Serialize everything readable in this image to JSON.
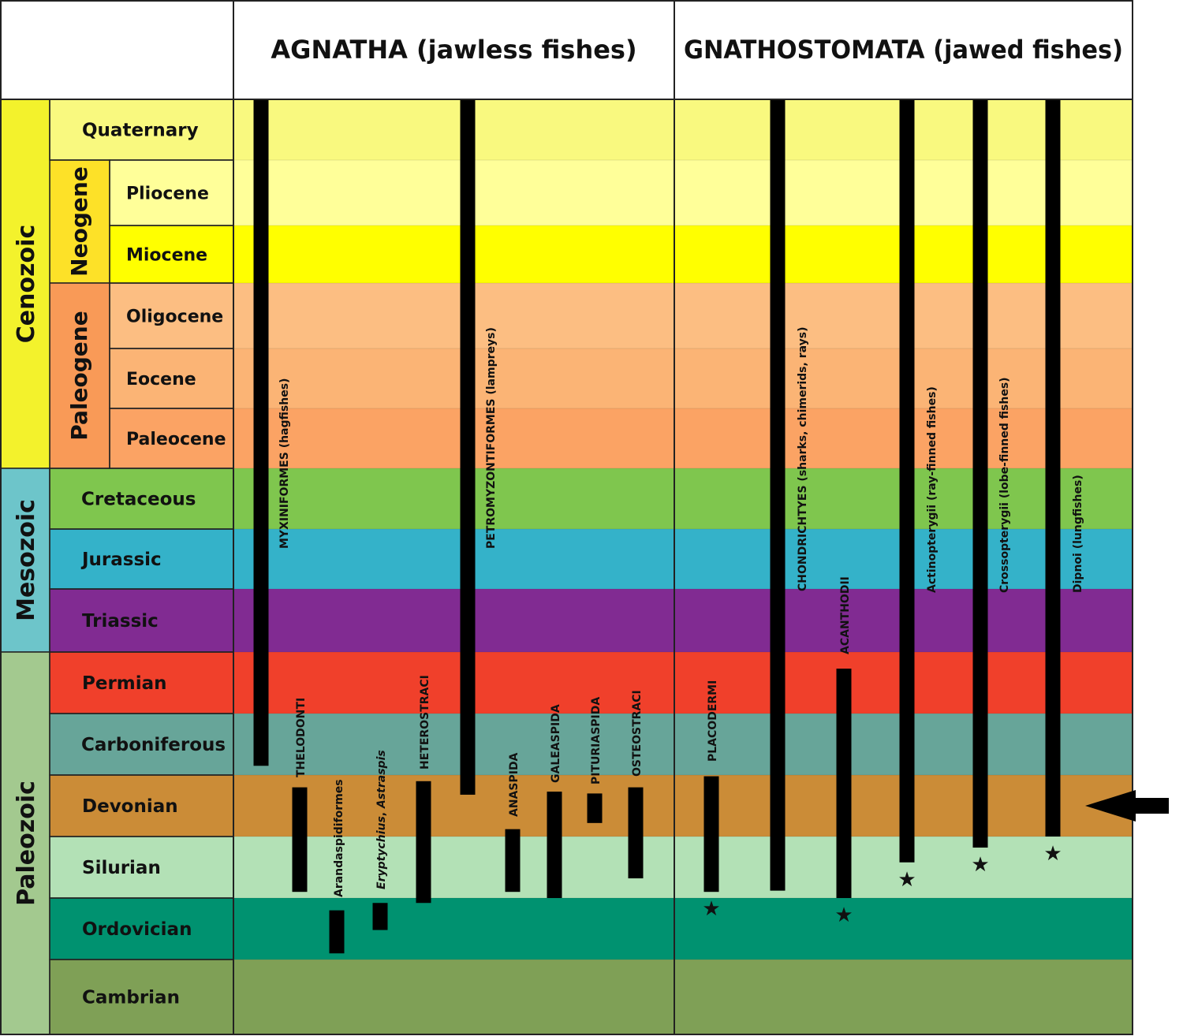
{
  "headers": {
    "agnatha": "AGNATHA (jawless fishes)",
    "gnathostomata": "GNATHOSTOMATA (jawed fishes)"
  },
  "eras": [
    {
      "id": "cenozoic",
      "name": "Cenozoic",
      "color": "#f3f22c",
      "from": "quaternary",
      "to": "paleocene"
    },
    {
      "id": "mesozoic",
      "name": "Mesozoic",
      "color": "#6dc5ca",
      "from": "cretaceous",
      "to": "triassic"
    },
    {
      "id": "paleozoic",
      "name": "Paleozoic",
      "color": "#a3c98f",
      "from": "permian",
      "to": "cambrian"
    }
  ],
  "periods": [
    {
      "id": "neogene",
      "name": "Neogene",
      "color": "#fde128",
      "from": "pliocene",
      "to": "miocene"
    },
    {
      "id": "paleogene",
      "name": "Paleogene",
      "color": "#f99a57",
      "from": "oligocene",
      "to": "paleocene"
    }
  ],
  "rows": [
    {
      "id": "quaternary",
      "name": "Quaternary",
      "color": "#f9f97f",
      "level": "period"
    },
    {
      "id": "pliocene",
      "name": "Pliocene",
      "color": "#ffff99",
      "level": "epoch"
    },
    {
      "id": "miocene",
      "name": "Miocene",
      "color": "#ffff00",
      "level": "epoch"
    },
    {
      "id": "oligocene",
      "name": "Oligocene",
      "color": "#fcbe82",
      "level": "epoch"
    },
    {
      "id": "eocene",
      "name": "Eocene",
      "color": "#fbb475",
      "level": "epoch"
    },
    {
      "id": "paleocene",
      "name": "Paleocene",
      "color": "#fba364",
      "level": "epoch"
    },
    {
      "id": "cretaceous",
      "name": "Cretaceous",
      "color": "#7fc64e",
      "level": "period"
    },
    {
      "id": "jurassic",
      "name": "Jurassic",
      "color": "#34b2c9",
      "level": "period"
    },
    {
      "id": "triassic",
      "name": "Triassic",
      "color": "#812b92",
      "level": "period"
    },
    {
      "id": "permian",
      "name": "Permian",
      "color": "#f0402b",
      "level": "period"
    },
    {
      "id": "carboniferous",
      "name": "Carboniferous",
      "color": "#67a599",
      "level": "period"
    },
    {
      "id": "devonian",
      "name": "Devonian",
      "color": "#cb8c37",
      "level": "period"
    },
    {
      "id": "silurian",
      "name": "Silurian",
      "color": "#b3e1b6",
      "level": "period"
    },
    {
      "id": "ordovician",
      "name": "Ordovician",
      "color": "#009270",
      "level": "period"
    },
    {
      "id": "cambrian",
      "name": "Cambrian",
      "color": "#7fa056",
      "level": "period"
    }
  ],
  "groups": [
    {
      "id": "myxiniformes",
      "label": "MYXINIFORMES (hagfishes)",
      "top": "quaternary",
      "bottom": "carboniferous",
      "bottom_frac": 0.85
    },
    {
      "id": "thelodonti",
      "label": "THELODONTI",
      "top": "devonian",
      "top_frac": 0.2,
      "bottom": "silurian",
      "bottom_frac": 0.9
    },
    {
      "id": "arandaspidiformes",
      "label": "Arandaspidiformes",
      "top": "ordovician",
      "top_frac": 0.2,
      "bottom": "ordovician",
      "bottom_frac": 0.9
    },
    {
      "id": "eryptychius",
      "label": "Eryptychius, Astraspis",
      "top": "ordovician",
      "top_frac": 0.08,
      "bottom": "ordovician",
      "bottom_frac": 0.52
    },
    {
      "id": "heterostraci",
      "label": "HETEROSTRACI",
      "top": "devonian",
      "top_frac": 0.1,
      "bottom": "ordovician",
      "bottom_frac": 0.08
    },
    {
      "id": "petromyzontiformes",
      "label": "PETROMYZONTIFORMES (lampreys)",
      "top": "quaternary",
      "bottom": "devonian",
      "bottom_frac": 0.32
    },
    {
      "id": "anaspida",
      "label": "ANASPIDA",
      "top": "devonian",
      "top_frac": 0.88,
      "bottom": "silurian",
      "bottom_frac": 0.9
    },
    {
      "id": "galeaspida",
      "label": "GALEASPIDA",
      "top": "devonian",
      "top_frac": 0.27,
      "bottom": "silurian",
      "bottom_frac": 1.0
    },
    {
      "id": "pituriaspida",
      "label": "PITURIASPIDA",
      "top": "devonian",
      "top_frac": 0.3,
      "bottom": "devonian",
      "bottom_frac": 0.78
    },
    {
      "id": "osteostraci",
      "label": "OSTEOSTRACI",
      "top": "devonian",
      "top_frac": 0.2,
      "bottom": "silurian",
      "bottom_frac": 0.68
    },
    {
      "id": "placodermi",
      "label": "PLACODERMI",
      "top": "devonian",
      "top_frac": 0.02,
      "bottom": "silurian",
      "bottom_frac": 0.9,
      "star": true
    },
    {
      "id": "chondrichthyes",
      "label": "CHONDRICHTYES (sharks, chimerids, rays)",
      "top": "quaternary",
      "bottom": "silurian",
      "bottom_frac": 0.88
    },
    {
      "id": "acanthodii",
      "label": "ACANTHODII",
      "top": "permian",
      "top_frac": 0.27,
      "bottom": "silurian",
      "bottom_frac": 1.0,
      "star": true
    },
    {
      "id": "actinopterygii",
      "label": "Actinopterygii (ray-finned fishes)",
      "top": "quaternary",
      "bottom": "silurian",
      "bottom_frac": 0.42,
      "star": true
    },
    {
      "id": "crossopterygii",
      "label": "Crossopterygii (lobe-finned fishes)",
      "top": "quaternary",
      "bottom": "silurian",
      "bottom_frac": 0.18,
      "star": true
    },
    {
      "id": "dipnoi",
      "label": "Dipnoi (lungfishes)",
      "top": "quaternary",
      "bottom": "devonian",
      "bottom_frac": 1.0,
      "star": true
    }
  ],
  "star_glyph": "★",
  "arrow": {
    "points_to": "devonian",
    "icon": "arrow-left-icon"
  }
}
